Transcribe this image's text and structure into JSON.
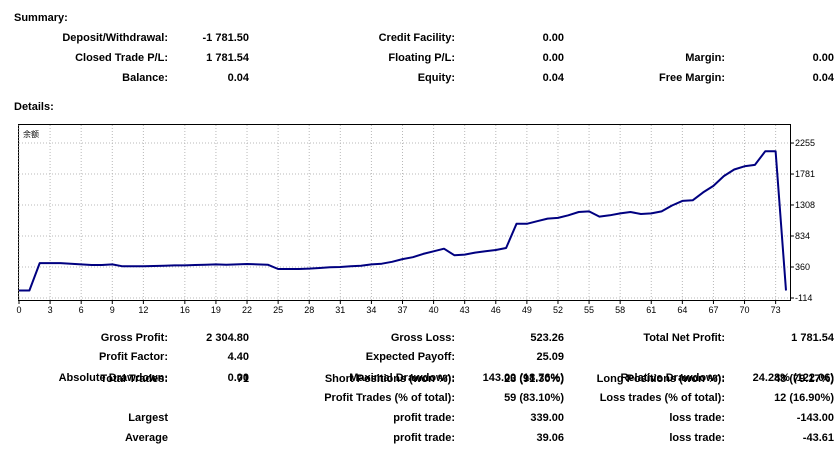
{
  "summary": {
    "title": "Summary:",
    "deposit_withdrawal": {
      "label": "Deposit/Withdrawal:",
      "value": "-1 781.50"
    },
    "credit_facility": {
      "label": "Credit Facility:",
      "value": "0.00"
    },
    "closed_trade_pl": {
      "label": "Closed Trade P/L:",
      "value": "1 781.54"
    },
    "floating_pl": {
      "label": "Floating P/L:",
      "value": "0.00"
    },
    "margin": {
      "label": "Margin:",
      "value": "0.00"
    },
    "balance": {
      "label": "Balance:",
      "value": "0.04"
    },
    "equity": {
      "label": "Equity:",
      "value": "0.04"
    },
    "free_margin": {
      "label": "Free Margin:",
      "value": "0.04"
    }
  },
  "details": {
    "title": "Details:",
    "gross_profit": {
      "label": "Gross Profit:",
      "value": "2 304.80"
    },
    "gross_loss": {
      "label": "Gross Loss:",
      "value": "523.26"
    },
    "total_net_profit": {
      "label": "Total Net Profit:",
      "value": "1 781.54"
    },
    "profit_factor": {
      "label": "Profit Factor:",
      "value": "4.40"
    },
    "expected_payoff": {
      "label": "Expected Payoff:",
      "value": "25.09"
    },
    "absolute_drawdown": {
      "label": "Absolute Drawdown:",
      "value": "0.00"
    },
    "maximal_drawdown": {
      "label": "Maximal Drawdown:",
      "value": "143.00 (18.76%)"
    },
    "relative_drawdown": {
      "label": "Relative Drawdown:",
      "value": "24.28% (122.06)"
    },
    "total_trades": {
      "label": "Total Trades:",
      "value": "71"
    },
    "short_positions": {
      "label": "Short Positions (won %):",
      "value": "23 (91.30%)"
    },
    "long_positions": {
      "label": "Long Positions (won %):",
      "value": "48 (79.17%)"
    },
    "profit_trades": {
      "label": "Profit Trades (% of total):",
      "value": "59 (83.10%)"
    },
    "loss_trades": {
      "label": "Loss trades (% of total):",
      "value": "12 (16.90%)"
    },
    "largest": {
      "label": "Largest",
      "profit_label": "profit trade:",
      "profit_value": "339.00",
      "loss_label": "loss trade:",
      "loss_value": "-143.00"
    },
    "average": {
      "label": "Average",
      "profit_label": "profit trade:",
      "profit_value": "39.06",
      "loss_label": "loss trade:",
      "loss_value": "-43.61"
    }
  },
  "chart_data": {
    "type": "line",
    "title": "余额",
    "line_color": "#000080",
    "ylim": [
      -114,
      2500
    ],
    "y_ticks": [
      2255,
      1781,
      1308,
      834,
      360,
      -114
    ],
    "x_ticks": [
      0,
      3,
      6,
      9,
      12,
      16,
      19,
      22,
      25,
      28,
      31,
      34,
      37,
      40,
      43,
      46,
      49,
      52,
      55,
      58,
      61,
      64,
      67,
      70,
      73
    ],
    "xlim": [
      0,
      74
    ],
    "x": [
      0,
      1,
      2,
      3,
      4,
      5,
      6,
      7,
      8,
      9,
      10,
      11,
      12,
      13,
      14,
      15,
      16,
      17,
      18,
      19,
      20,
      21,
      22,
      23,
      24,
      25,
      26,
      27,
      28,
      29,
      30,
      31,
      32,
      33,
      34,
      35,
      36,
      37,
      38,
      39,
      40,
      41,
      42,
      43,
      44,
      45,
      46,
      47,
      48,
      49,
      50,
      51,
      52,
      53,
      54,
      55,
      56,
      57,
      58,
      59,
      60,
      61,
      62,
      63,
      64,
      65,
      66,
      67,
      68,
      69,
      70,
      71,
      72,
      73,
      74
    ],
    "y": [
      0,
      0,
      420,
      420,
      420,
      410,
      400,
      390,
      390,
      400,
      370,
      370,
      370,
      375,
      380,
      385,
      385,
      390,
      395,
      400,
      395,
      400,
      405,
      400,
      395,
      330,
      330,
      330,
      335,
      345,
      355,
      360,
      370,
      380,
      400,
      410,
      440,
      480,
      510,
      560,
      600,
      640,
      540,
      550,
      580,
      600,
      620,
      650,
      1020,
      1020,
      1060,
      1100,
      1110,
      1150,
      1200,
      1210,
      1130,
      1150,
      1180,
      1200,
      1170,
      1180,
      1210,
      1300,
      1370,
      1380,
      1500,
      1600,
      1750,
      1850,
      1900,
      1920,
      2130,
      2130,
      0
    ]
  }
}
